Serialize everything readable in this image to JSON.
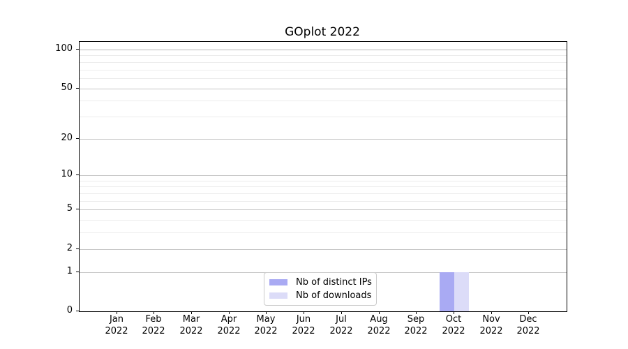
{
  "chart_data": {
    "type": "bar",
    "title": "GOplot 2022",
    "categories": [
      "Jan",
      "Feb",
      "Mar",
      "Apr",
      "May",
      "Jun",
      "Jul",
      "Aug",
      "Sep",
      "Oct",
      "Nov",
      "Dec"
    ],
    "year": "2022",
    "series": [
      {
        "name": "Nb of distinct IPs",
        "color": "#a9aaf3",
        "values": [
          0,
          0,
          0,
          0,
          0,
          0,
          0,
          0,
          0,
          1,
          0,
          0
        ]
      },
      {
        "name": "Nb of downloads",
        "color": "#dcdcf8",
        "values": [
          0,
          0,
          0,
          0,
          0,
          0,
          0,
          0,
          0,
          1,
          0,
          0
        ]
      }
    ],
    "yscale": "log1p",
    "ylim": [
      0,
      115
    ],
    "yticks_major": [
      0,
      1,
      2,
      5,
      10,
      20,
      50,
      100
    ],
    "yticks_minor": [
      3,
      4,
      6,
      7,
      8,
      9,
      30,
      40,
      60,
      70,
      80,
      90
    ],
    "grid": "horizontal",
    "legend": {
      "position": "bottom-center-inset",
      "entries": [
        "Nb of distinct IPs",
        "Nb of downloads"
      ]
    },
    "colors": {
      "major_grid": "#c6c6c6",
      "minor_grid": "#ececec",
      "axis": "#000000",
      "legend_border": "#cbcbcb"
    }
  }
}
